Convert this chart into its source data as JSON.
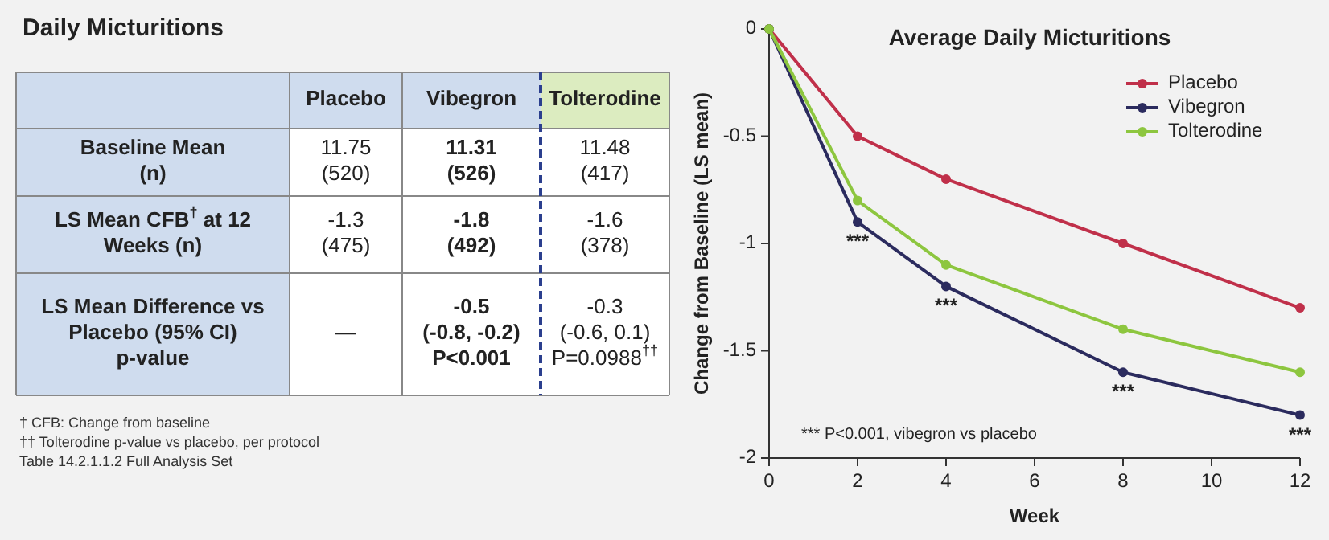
{
  "chart_data": [
    {
      "type": "other",
      "title": "Daily Micturitions",
      "categories": [
        null,
        "Placebo",
        "Vibegron",
        "Tolterodine"
      ],
      "y_categories": [
        "Baseline Mean\n(n)",
        "LS Mean CFB$^{†}$ at 12\nWeeks (n)",
        "LS Mean Difference vs\nPlacebo (95% CI)\np-value"
      ],
      "cell_labels": [
        [
          "11.75\n(520)",
          "11.31\n(526)",
          "11.48\n(417)"
        ],
        [
          "-1.3\n(475)",
          "-1.8\n(492)",
          "-1.6\n(378)"
        ],
        [
          "—",
          "-0.5\n(-0.8, -0.2)\nP<0.001",
          "-0.3\n(-0.6, 0.1)\nP=0.0988$^{††}$"
        ]
      ],
      "annotations": [
        "† CFB: Change from baseline",
        "†† Tolterodine p-value vs placebo, per protocol",
        "Table 14.2.1.1.2 Full Analysis Set"
      ]
    },
    {
      "type": "line",
      "title": "Average Daily Micturitions",
      "xlabel": "Week",
      "ylabel": "Change from Baseline (LS mean)",
      "x": [
        0,
        2,
        4,
        8,
        12
      ],
      "series": [
        {
          "name": "Placebo",
          "color": "#c0304a",
          "values": [
            0,
            -0.5,
            -0.7,
            -1.0,
            -1.3
          ]
        },
        {
          "name": "Vibegron",
          "color": "#2b2b5e",
          "values": [
            0,
            -0.9,
            -1.2,
            -1.6,
            -1.8
          ]
        },
        {
          "name": "Tolterodine",
          "color": "#8dc63f",
          "values": [
            0,
            -0.8,
            -1.1,
            -1.4,
            -1.6
          ]
        }
      ],
      "xlim": [
        0,
        12
      ],
      "xticks": [
        0,
        2,
        4,
        6,
        8,
        10,
        12
      ],
      "ylim": [
        -2,
        0
      ],
      "yticks": [
        0,
        -0.5,
        -1,
        -1.5,
        -2
      ],
      "grid": false,
      "legend": "top right",
      "marker": "circle",
      "line_style": "solid",
      "annotations": [
        {
          "text": "***",
          "x": 2,
          "y": -0.9
        },
        {
          "text": "***",
          "x": 4,
          "y": -1.2
        },
        {
          "text": "***",
          "x": 8,
          "y": -1.6
        },
        {
          "text": "***",
          "x": 12,
          "y": -1.8
        },
        "*** P<0.001, vibegron vs placebo"
      ]
    }
  ]
}
